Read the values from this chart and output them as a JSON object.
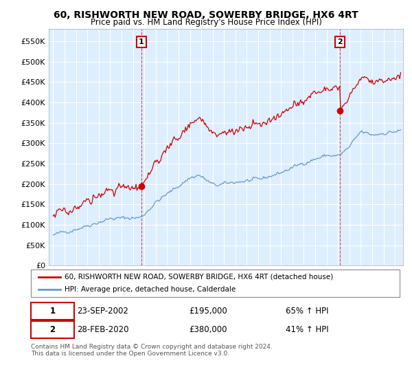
{
  "title": "60, RISHWORTH NEW ROAD, SOWERBY BRIDGE, HX6 4RT",
  "subtitle": "Price paid vs. HM Land Registry's House Price Index (HPI)",
  "red_line_label": "60, RISHWORTH NEW ROAD, SOWERBY BRIDGE, HX6 4RT (detached house)",
  "blue_line_label": "HPI: Average price, detached house, Calderdale",
  "sale1_date": "23-SEP-2002",
  "sale1_price": 195000,
  "sale1_pct": "65% ↑ HPI",
  "sale1_year": 2002.72,
  "sale2_date": "28-FEB-2020",
  "sale2_price": 380000,
  "sale2_pct": "41% ↑ HPI",
  "sale2_year": 2020.16,
  "ylim_min": 0,
  "ylim_max": 580000,
  "yticks": [
    0,
    50000,
    100000,
    150000,
    200000,
    250000,
    300000,
    350000,
    400000,
    450000,
    500000,
    550000
  ],
  "ytick_labels": [
    "£0",
    "£50K",
    "£100K",
    "£150K",
    "£200K",
    "£250K",
    "£300K",
    "£350K",
    "£400K",
    "£450K",
    "£500K",
    "£550K"
  ],
  "red_color": "#cc0000",
  "blue_color": "#6699cc",
  "bg_color": "#ffffff",
  "plot_bg_color": "#ddeeff",
  "grid_color": "#ffffff",
  "footnote": "Contains HM Land Registry data © Crown copyright and database right 2024.\nThis data is licensed under the Open Government Licence v3.0.",
  "xmin": 1994.6,
  "xmax": 2025.7
}
